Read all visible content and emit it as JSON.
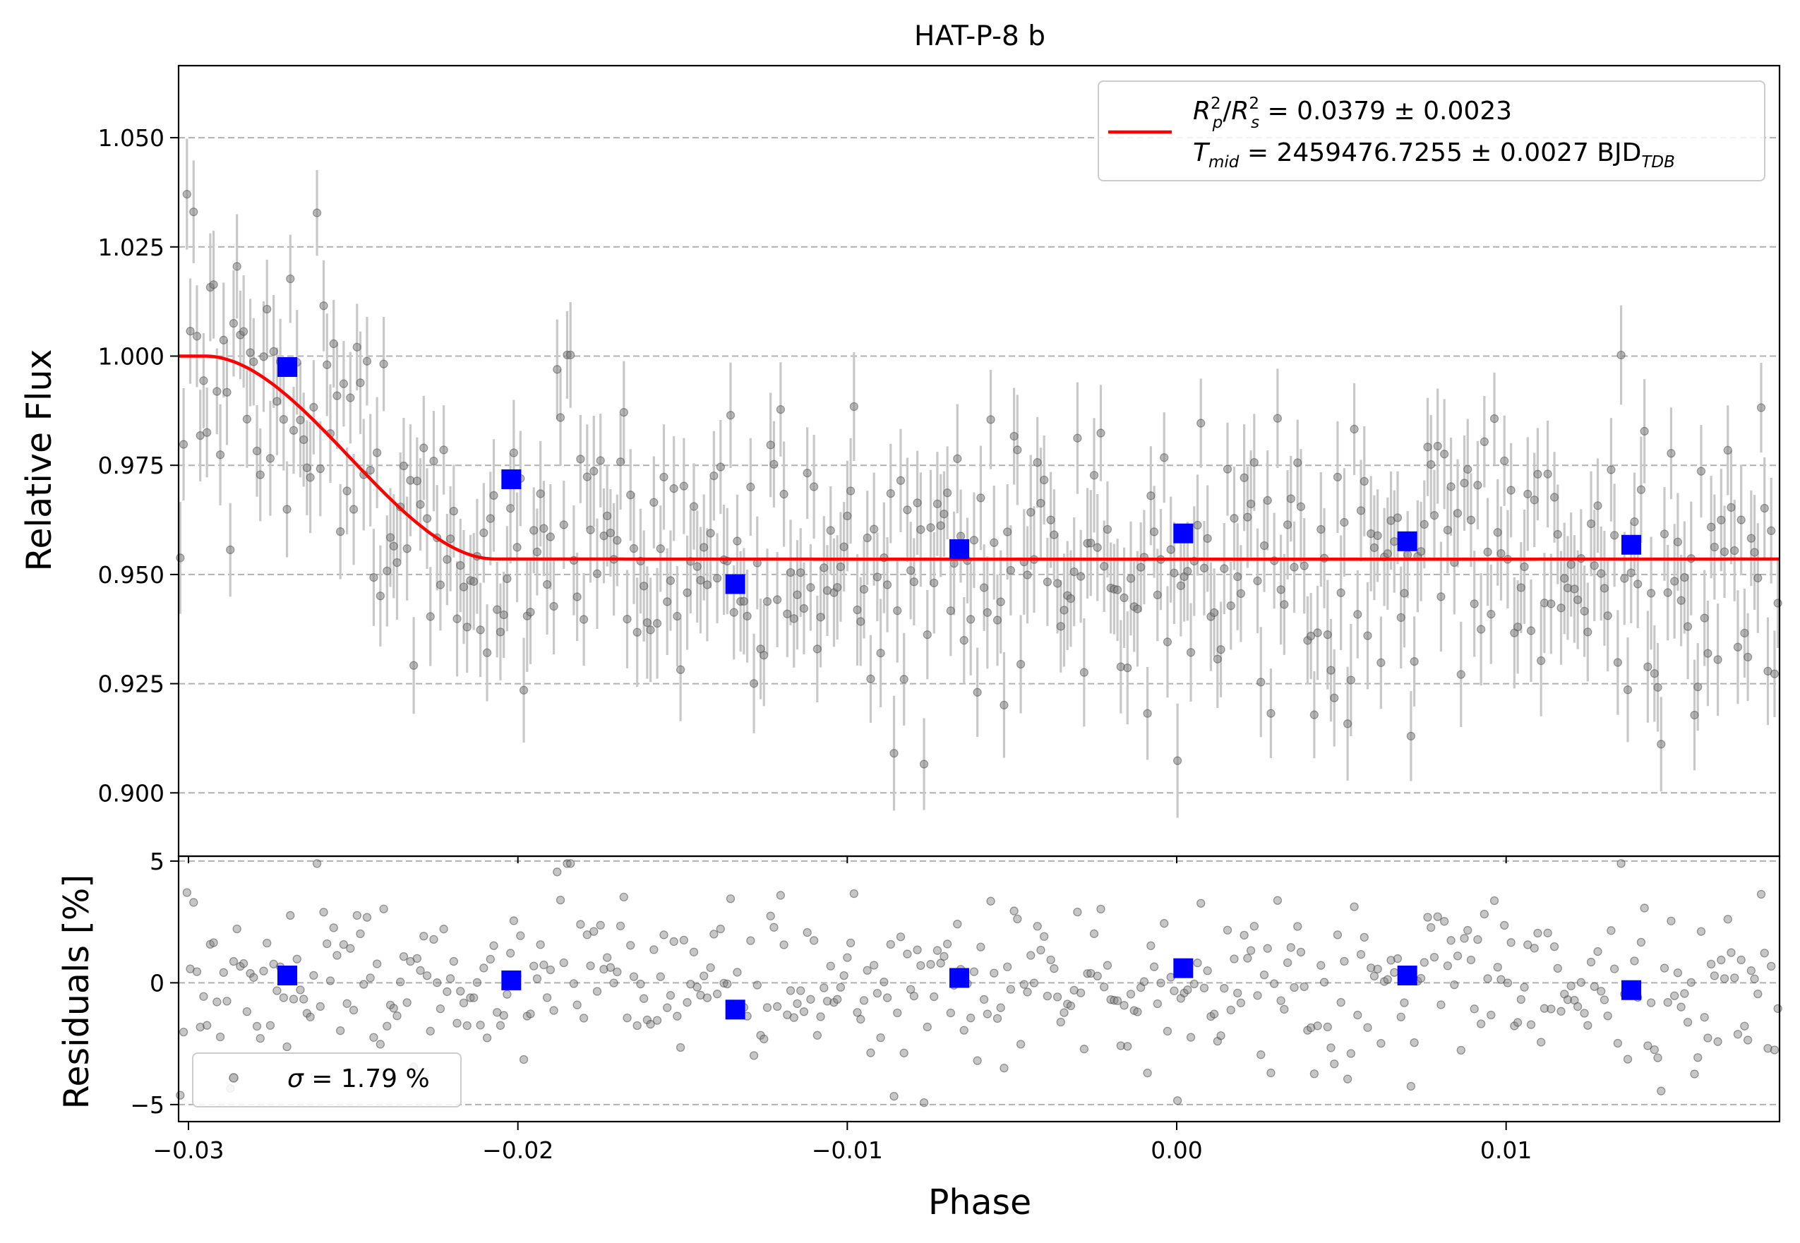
{
  "chart_data": {
    "type": "scatter",
    "title": "HAT-P-8 b",
    "xlabel": "Phase",
    "x_ticks": [
      -0.03,
      -0.02,
      -0.01,
      0.0,
      0.01
    ],
    "x_tick_labels": [
      "−0.03",
      "−0.02",
      "−0.01",
      "0.00",
      "0.01"
    ],
    "xlim": [
      -0.0303,
      0.0183
    ],
    "top_panel": {
      "ylabel": "Relative Flux",
      "ylim": [
        0.8855,
        1.0665
      ],
      "y_ticks": [
        0.9,
        0.925,
        0.95,
        0.975,
        1.0,
        1.025,
        1.05
      ],
      "y_tick_labels": [
        "0.900",
        "0.925",
        "0.950",
        "0.975",
        "1.000",
        "1.025",
        "1.050"
      ],
      "grid": "horizontal dashed",
      "raw_error_bar_half_width": 0.0115,
      "model": {
        "color": "#ff0000",
        "depth": 0.0465,
        "t_mid": 0.0,
        "t_half_total": 0.0295,
        "t_half_ingress": 0.0088,
        "limb_darkening_slope": 0.11,
        "baseline_level": 1.0
      },
      "binned": [
        {
          "x": -0.027,
          "y": 0.9975
        },
        {
          "x": -0.0202,
          "y": 0.9718
        },
        {
          "x": -0.0134,
          "y": 0.9478
        },
        {
          "x": -0.0066,
          "y": 0.9558
        },
        {
          "x": 0.0002,
          "y": 0.9594
        },
        {
          "x": 0.007,
          "y": 0.9576
        },
        {
          "x": 0.0138,
          "y": 0.9568
        }
      ]
    },
    "bottom_panel": {
      "ylabel": "Residuals [%]",
      "ylim": [
        -5.7,
        5.2
      ],
      "y_ticks": [
        -5,
        0,
        5
      ],
      "y_tick_labels": [
        "−5",
        "0",
        "5"
      ],
      "grid": "horizontal dashed",
      "binned": [
        {
          "x": -0.027,
          "y": 0.3
        },
        {
          "x": -0.0202,
          "y": 0.1
        },
        {
          "x": -0.0134,
          "y": -1.1
        },
        {
          "x": -0.0066,
          "y": 0.2
        },
        {
          "x": 0.0002,
          "y": 0.6
        },
        {
          "x": 0.007,
          "y": 0.3
        },
        {
          "x": 0.0138,
          "y": -0.3
        }
      ]
    },
    "raw_points": {
      "count": 480,
      "x_range": [
        -0.0303,
        0.0183
      ],
      "residual_sigma_percent": 1.79,
      "marker_color": "#808080",
      "error_color": "#c8c8c8"
    },
    "legend_top": {
      "placement": "top-right",
      "line1": {
        "R": "R",
        "p": "p",
        "two_a": "2",
        "slash": "/",
        "R2": "R",
        "s": "s",
        "two_b": "2",
        "rest": " = 0.0379 ± 0.0023"
      },
      "line2": {
        "T": "T",
        "mid": "mid",
        "rest": " = 2459476.7255 ± 0.0027 BJD",
        "tdb": "TDB"
      }
    },
    "legend_bottom": {
      "placement": "bottom-left",
      "sigma": "σ",
      "rest": " = 1.79 %"
    },
    "colors": {
      "model": "#ff0000",
      "binned": "#0000ff",
      "raw": "#808080",
      "error_bars": "#c8c8c8",
      "grid": "#b0b0b0"
    }
  }
}
